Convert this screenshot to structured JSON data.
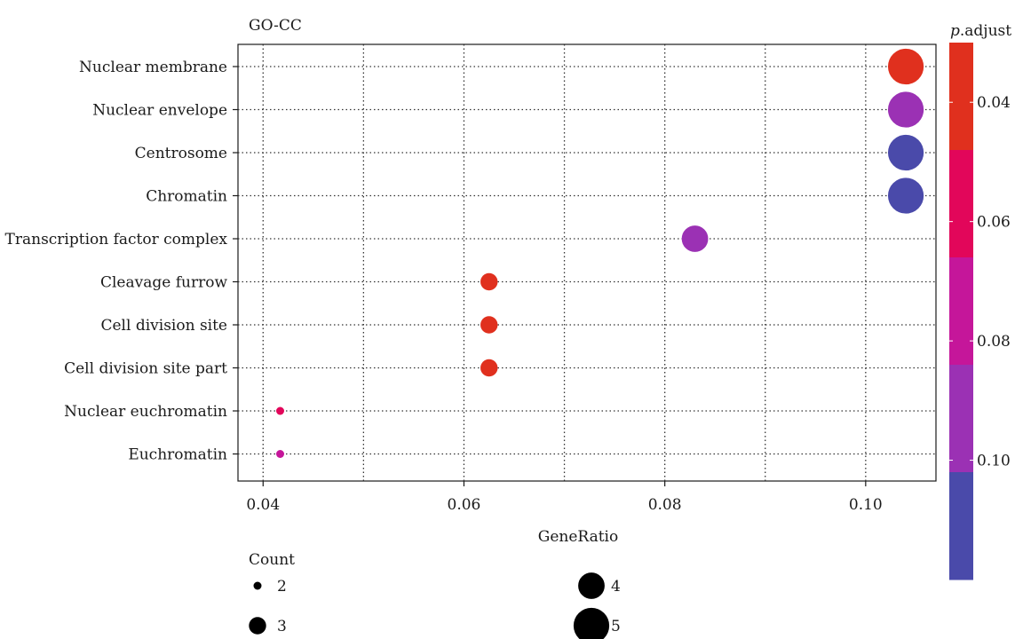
{
  "chart_data": {
    "type": "scatter",
    "title": "GO-CC",
    "xlabel": "GeneRatio",
    "ylabel": "",
    "xlim": [
      0.0375,
      0.107
    ],
    "xticks": [
      "0.04",
      "0.06",
      "0.08",
      "0.10"
    ],
    "xtick_values": [
      0.04,
      0.06,
      0.08,
      0.1
    ],
    "grid": true,
    "categories": [
      "Nuclear membrane",
      "Nuclear envelope",
      "Centrosome",
      "Chromatin",
      "Transcription factor complex",
      "Cleavage furrow",
      "Cell division site",
      "Cell division site part",
      "Nuclear euchromatin",
      "Euchromatin"
    ],
    "points": [
      {
        "term": "Nuclear membrane",
        "gene_ratio": 0.104,
        "count": 5,
        "p_adjust": 0.035
      },
      {
        "term": "Nuclear envelope",
        "gene_ratio": 0.104,
        "count": 5,
        "p_adjust": 0.095
      },
      {
        "term": "Centrosome",
        "gene_ratio": 0.104,
        "count": 5,
        "p_adjust": 0.11
      },
      {
        "term": "Chromatin",
        "gene_ratio": 0.104,
        "count": 5,
        "p_adjust": 0.11
      },
      {
        "term": "Transcription factor complex",
        "gene_ratio": 0.083,
        "count": 4,
        "p_adjust": 0.095
      },
      {
        "term": "Cleavage furrow",
        "gene_ratio": 0.0625,
        "count": 3,
        "p_adjust": 0.035
      },
      {
        "term": "Cell division site",
        "gene_ratio": 0.0625,
        "count": 3,
        "p_adjust": 0.035
      },
      {
        "term": "Cell division site part",
        "gene_ratio": 0.0625,
        "count": 3,
        "p_adjust": 0.035
      },
      {
        "term": "Nuclear euchromatin",
        "gene_ratio": 0.0417,
        "count": 2,
        "p_adjust": 0.055
      },
      {
        "term": "Euchromatin",
        "gene_ratio": 0.0417,
        "count": 2,
        "p_adjust": 0.075
      }
    ],
    "color_legend": {
      "title_italic": "p",
      "title_rest": ".adjust",
      "tick_labels": [
        "0.04",
        "0.06",
        "0.08",
        "0.10"
      ],
      "tick_values": [
        0.04,
        0.06,
        0.08,
        0.1
      ],
      "range": [
        0.03,
        0.12
      ],
      "bands": [
        "#e0301e",
        "#e2065a",
        "#c5169a",
        "#9b31b4",
        "#4a4aaa"
      ]
    },
    "size_legend": {
      "title": "Count",
      "items": [
        {
          "label": "2",
          "count": 2
        },
        {
          "label": "3",
          "count": 3
        },
        {
          "label": "4",
          "count": 4
        },
        {
          "label": "5",
          "count": 5
        }
      ]
    }
  }
}
